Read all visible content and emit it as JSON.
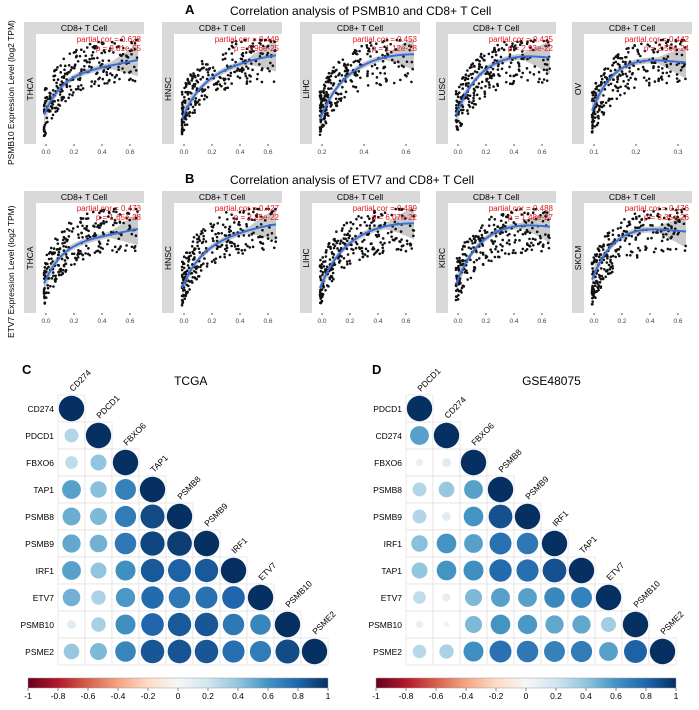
{
  "panelA": {
    "letter": "A",
    "title": "Correlation analysis of PSMB10 and CD8+ T Cell",
    "ylabel": "PSMB10 Expression Level (log2 TPM)",
    "strip": "CD8+ T Cell",
    "plots": [
      {
        "label": "THCA",
        "cor": "partial.cor = 0.628",
        "p": "p = 9.81e-55",
        "xticks": [
          "0.0",
          "0.2",
          "0.4",
          "0.6"
        ]
      },
      {
        "label": "HNSC",
        "cor": "partial.cor = 0.449",
        "p": "p = 6.96e-25",
        "xticks": [
          "0.0",
          "0.2",
          "0.4",
          "0.6"
        ]
      },
      {
        "label": "LIHC",
        "cor": "partial.cor = 0.453",
        "p": "p = 1.12e-18",
        "xticks": [
          "0.2",
          "0.4",
          "0.6"
        ]
      },
      {
        "label": "LUSC",
        "cor": "partial.cor = 0.425",
        "p": "p = 2.93e-22",
        "xticks": [
          "0.0",
          "0.2",
          "0.4",
          "0.6"
        ]
      },
      {
        "label": "OV",
        "cor": "partial.cor = 0.442",
        "p": "p = 2.50e-24",
        "xticks": [
          "0.1",
          "0.2",
          "0.3"
        ]
      }
    ]
  },
  "panelB": {
    "letter": "B",
    "title": "Correlation analysis of ETV7 and CD8+ T Cell",
    "ylabel": "ETV7 Expression Level (log2 TPM)",
    "strip": "CD8+ T Cell",
    "plots": [
      {
        "label": "THCA",
        "cor": "partial.cor = 0.473",
        "p": "p = 1.65e-28",
        "xticks": [
          "0.0",
          "0.2",
          "0.4",
          "0.6"
        ]
      },
      {
        "label": "HNSC",
        "cor": "partial.cor = 0.427",
        "p": "p = 2.25e-22",
        "xticks": [
          "0.0",
          "0.2",
          "0.4",
          "0.6"
        ]
      },
      {
        "label": "LIHC",
        "cor": "partial.cor = 0.489",
        "p": "p = 6.07e-22",
        "xticks": [
          "0.0",
          "0.2",
          "0.4",
          "0.6"
        ]
      },
      {
        "label": "KIRC",
        "cor": "partial.cor = 0.488",
        "p": "p = 1.48e-27",
        "xticks": [
          "0.0",
          "0.2",
          "0.4",
          "0.6"
        ]
      },
      {
        "label": "SKCM",
        "cor": "partial.cor = 0.476",
        "p": "p = 3.35e-26",
        "xticks": [
          "0.0",
          "0.2",
          "0.4",
          "0.6"
        ]
      }
    ]
  },
  "chart_data": [
    {
      "type": "heatmap",
      "panel": "C",
      "title": "TCGA",
      "genes": [
        "CD274",
        "PDCD1",
        "FBXO6",
        "TAP1",
        "PSMB8",
        "PSMB9",
        "IRF1",
        "ETV7",
        "PSMB10",
        "PSME2"
      ],
      "matrix": [
        [
          1
        ],
        [
          0.3,
          1
        ],
        [
          0.25,
          0.4,
          1
        ],
        [
          0.55,
          0.42,
          0.68,
          1
        ],
        [
          0.5,
          0.45,
          0.7,
          0.9,
          1
        ],
        [
          0.52,
          0.48,
          0.72,
          0.92,
          0.95,
          1
        ],
        [
          0.55,
          0.4,
          0.62,
          0.85,
          0.82,
          0.85,
          1
        ],
        [
          0.48,
          0.32,
          0.58,
          0.78,
          0.72,
          0.75,
          0.8,
          1
        ],
        [
          0.12,
          0.33,
          0.62,
          0.8,
          0.85,
          0.86,
          0.72,
          0.66,
          1
        ],
        [
          0.38,
          0.45,
          0.66,
          0.86,
          0.87,
          0.86,
          0.76,
          0.7,
          0.9,
          1
        ]
      ],
      "legend": {
        "min": -1,
        "max": 1,
        "ticks": [
          "-1",
          "-0.8",
          "-0.6",
          "-0.4",
          "-0.2",
          "0",
          "0.2",
          "0.4",
          "0.6",
          "0.8",
          "1"
        ]
      }
    },
    {
      "type": "heatmap",
      "panel": "D",
      "title": "GSE48075",
      "genes": [
        "PDCD1",
        "CD274",
        "FBXO6",
        "PSMB8",
        "PSMB9",
        "IRF1",
        "TAP1",
        "ETV7",
        "PSMB10",
        "PSME2"
      ],
      "matrix": [
        [
          1
        ],
        [
          0.55,
          1
        ],
        [
          0.08,
          0.12,
          1
        ],
        [
          0.3,
          0.38,
          0.55,
          1
        ],
        [
          0.3,
          0.12,
          0.6,
          0.88,
          1
        ],
        [
          0.42,
          0.6,
          0.55,
          0.75,
          0.72,
          1
        ],
        [
          0.4,
          0.6,
          0.62,
          0.78,
          0.76,
          0.88,
          1
        ],
        [
          0.25,
          0.1,
          0.45,
          0.55,
          0.55,
          0.65,
          0.68,
          1
        ],
        [
          0.08,
          0.05,
          0.45,
          0.6,
          0.58,
          0.52,
          0.52,
          0.35,
          1
        ],
        [
          0.28,
          0.32,
          0.62,
          0.75,
          0.72,
          0.68,
          0.7,
          0.55,
          0.82,
          1
        ]
      ],
      "legend": {
        "min": -1,
        "max": 1,
        "ticks": [
          "-1",
          "-0.8",
          "-0.6",
          "-0.4",
          "-0.2",
          "0",
          "0.2",
          "0.4",
          "0.6",
          "0.8",
          "1"
        ]
      }
    }
  ],
  "colors": {
    "strip_bg": "#d9d9d9",
    "points": "#111111",
    "fit_line": "#3a6fd8",
    "ci_band": "#bdbdbd",
    "stats_text": "#e8161b",
    "scale_neg": "#67001f",
    "scale_mid": "#f7f7f7",
    "scale_pos": "#053061"
  }
}
